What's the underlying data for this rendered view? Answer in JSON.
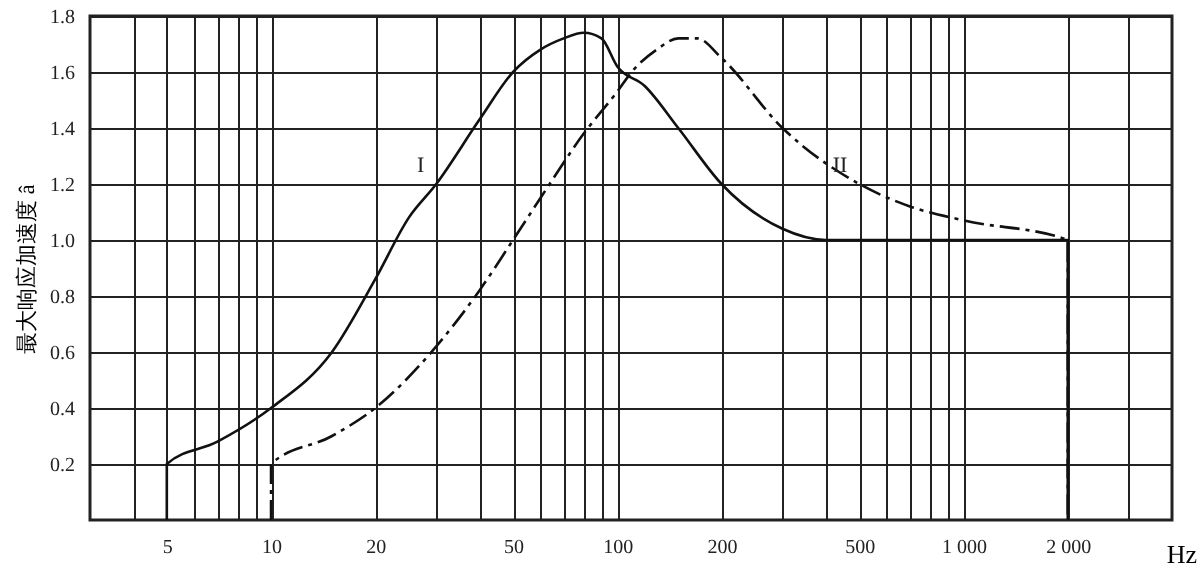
{
  "chart_data": {
    "type": "line",
    "xlabel": "Hz",
    "ylabel": "最大响应加速度 â",
    "log": "x",
    "grid": true,
    "xlim": [
      3,
      4000
    ],
    "ylim": [
      0,
      1.8
    ],
    "xticks": [
      {
        "value": 4,
        "label": null
      },
      5,
      {
        "value": 6,
        "label": null
      },
      {
        "value": 7,
        "label": null
      },
      {
        "value": 8,
        "label": null
      },
      {
        "value": 9,
        "label": null
      },
      10,
      20,
      {
        "value": 30,
        "label": null
      },
      {
        "value": 40,
        "label": null
      },
      50,
      {
        "value": 60,
        "label": null
      },
      {
        "value": 70,
        "label": null
      },
      {
        "value": 80,
        "label": null
      },
      {
        "value": 90,
        "label": null
      },
      100,
      200,
      {
        "value": 300,
        "label": null
      },
      {
        "value": 400,
        "label": null
      },
      500,
      {
        "value": 600,
        "label": null
      },
      {
        "value": 700,
        "label": null
      },
      {
        "value": 800,
        "label": null
      },
      {
        "value": 900,
        "label": null
      },
      {
        "value": 1000,
        "label": "1 000"
      },
      {
        "value": 2000,
        "label": "2 000"
      },
      {
        "value": 3000,
        "label": null
      }
    ],
    "yticks": [
      0.2,
      0.4,
      0.6,
      0.8,
      {
        "value": 1,
        "label": "1.0"
      },
      1.2,
      1.4,
      1.6,
      1.8
    ],
    "series": [
      {
        "name": "I",
        "color": "#111111",
        "line_style": "solid",
        "x": [
          5,
          5,
          7,
          10,
          15,
          20,
          25,
          30,
          40,
          50,
          60,
          70,
          80,
          90,
          100,
          120,
          150,
          200,
          300,
          400,
          1000,
          2000,
          2000
        ],
        "values": [
          0,
          0.2,
          0.28,
          0.4,
          0.6,
          0.86,
          1.08,
          1.2,
          1.43,
          1.6,
          1.68,
          1.72,
          1.74,
          1.72,
          1.62,
          1.55,
          1.4,
          1.2,
          1.04,
          1.0,
          1.0,
          1.0,
          0
        ]
      },
      {
        "name": "II",
        "color": "#111111",
        "line_style": "dashed",
        "x": [
          10,
          10,
          15,
          20,
          30,
          40,
          50,
          60,
          80,
          100,
          110,
          130,
          150,
          170,
          200,
          300,
          500,
          700,
          1000,
          2000,
          2000
        ],
        "values": [
          0,
          0.2,
          0.3,
          0.4,
          0.62,
          0.82,
          1.0,
          1.15,
          1.38,
          1.53,
          1.6,
          1.68,
          1.72,
          1.72,
          1.65,
          1.4,
          1.2,
          1.12,
          1.07,
          1.0,
          0
        ]
      }
    ]
  }
}
